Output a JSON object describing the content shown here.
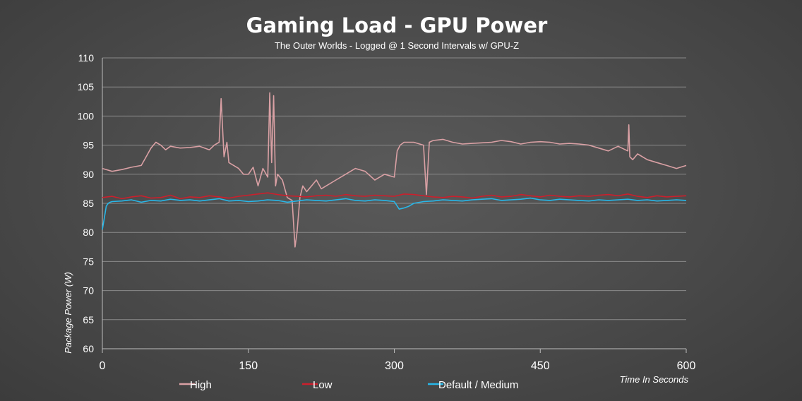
{
  "chart_data": {
    "type": "line",
    "title": "Gaming Load - GPU Power",
    "subtitle": "The Outer Worlds - Logged @ 1 Second Intervals w/ GPU-Z",
    "xlabel": "Time In Seconds",
    "ylabel": "Package Power (W)",
    "xlim": [
      0,
      600
    ],
    "ylim": [
      60,
      110
    ],
    "xticks": [
      0,
      150,
      300,
      450,
      600
    ],
    "yticks": [
      60,
      65,
      70,
      75,
      80,
      85,
      90,
      95,
      100,
      105,
      110
    ],
    "grid": "horizontal",
    "legend_position": "bottom",
    "series": [
      {
        "name": "High",
        "color": "#d9a0a4",
        "x": [
          0,
          10,
          20,
          30,
          40,
          45,
          50,
          55,
          60,
          65,
          70,
          80,
          90,
          100,
          110,
          115,
          120,
          122,
          125,
          128,
          130,
          135,
          140,
          145,
          150,
          155,
          160,
          165,
          170,
          172,
          174,
          176,
          178,
          180,
          185,
          190,
          195,
          198,
          200,
          203,
          206,
          210,
          215,
          220,
          225,
          230,
          240,
          250,
          260,
          270,
          280,
          290,
          300,
          303,
          306,
          310,
          320,
          330,
          333,
          336,
          340,
          350,
          360,
          370,
          380,
          390,
          400,
          410,
          420,
          430,
          440,
          450,
          460,
          470,
          480,
          490,
          500,
          510,
          520,
          530,
          540,
          541,
          542,
          545,
          550,
          560,
          570,
          580,
          590,
          600
        ],
        "values": [
          91,
          90.5,
          90.8,
          91.2,
          91.5,
          93,
          94.5,
          95.5,
          95,
          94.2,
          94.8,
          94.5,
          94.6,
          94.8,
          94.2,
          95,
          95.5,
          103,
          93,
          95.5,
          92,
          91.5,
          91,
          90,
          90,
          91.2,
          88,
          91,
          89.5,
          104,
          92,
          103.5,
          88,
          90,
          89,
          86,
          85.5,
          77.5,
          80,
          86,
          88,
          87,
          88,
          89,
          87.5,
          88,
          89,
          90,
          91,
          90.5,
          89,
          90,
          89.5,
          94,
          95,
          95.5,
          95.5,
          95,
          86.5,
          95.5,
          95.8,
          96,
          95.5,
          95.2,
          95.3,
          95.4,
          95.5,
          95.8,
          95.6,
          95.2,
          95.5,
          95.6,
          95.5,
          95.2,
          95.3,
          95.2,
          95.0,
          94.5,
          94.0,
          94.8,
          94,
          98.5,
          93,
          92.5,
          93.5,
          92.5,
          92,
          91.5,
          91,
          91.5
        ]
      },
      {
        "name": "Low",
        "color": "#cc1f2c",
        "x": [
          0,
          10,
          20,
          30,
          40,
          50,
          60,
          70,
          80,
          90,
          100,
          110,
          120,
          130,
          140,
          150,
          160,
          170,
          180,
          190,
          200,
          210,
          220,
          230,
          240,
          250,
          260,
          270,
          280,
          290,
          300,
          310,
          320,
          330,
          340,
          350,
          360,
          370,
          380,
          390,
          400,
          410,
          420,
          430,
          440,
          450,
          460,
          470,
          480,
          490,
          500,
          510,
          520,
          530,
          540,
          550,
          560,
          570,
          580,
          590,
          600
        ],
        "values": [
          86,
          86.2,
          85.8,
          86.1,
          86.3,
          85.9,
          86,
          86.4,
          85.8,
          86.1,
          86,
          86.3,
          86.1,
          85.9,
          86.2,
          86.4,
          86.6,
          86.8,
          86.5,
          86.3,
          86.2,
          86.1,
          86.3,
          86.4,
          86.2,
          86.5,
          86.3,
          86.2,
          86.4,
          86.3,
          86.2,
          86.6,
          86.5,
          86.3,
          86.1,
          86,
          86.2,
          86.1,
          85.9,
          86.2,
          86.4,
          86.1,
          86.2,
          86.5,
          86.3,
          86.1,
          86.4,
          86.2,
          86.1,
          86.3,
          86.2,
          86.4,
          86.5,
          86.3,
          86.6,
          86.2,
          86,
          86.3,
          86.1,
          86.2,
          86.3
        ]
      },
      {
        "name": "Default / Medium",
        "color": "#28b7e8",
        "x": [
          0,
          2,
          4,
          6,
          8,
          10,
          20,
          30,
          40,
          50,
          60,
          70,
          80,
          90,
          100,
          110,
          120,
          130,
          140,
          150,
          160,
          170,
          180,
          190,
          200,
          210,
          220,
          230,
          240,
          250,
          260,
          270,
          280,
          290,
          300,
          305,
          310,
          315,
          320,
          330,
          340,
          350,
          360,
          370,
          380,
          390,
          400,
          410,
          420,
          430,
          440,
          450,
          460,
          470,
          480,
          490,
          500,
          510,
          520,
          530,
          540,
          550,
          560,
          570,
          580,
          590,
          600
        ],
        "values": [
          80.5,
          82.5,
          84.5,
          85,
          85.2,
          85.3,
          85.4,
          85.6,
          85.2,
          85.5,
          85.4,
          85.7,
          85.5,
          85.6,
          85.4,
          85.6,
          85.8,
          85.4,
          85.5,
          85.3,
          85.4,
          85.6,
          85.5,
          85.2,
          85.4,
          85.6,
          85.5,
          85.4,
          85.6,
          85.8,
          85.5,
          85.4,
          85.6,
          85.5,
          85.3,
          84,
          84.2,
          84.5,
          85,
          85.3,
          85.4,
          85.6,
          85.5,
          85.4,
          85.6,
          85.7,
          85.8,
          85.5,
          85.6,
          85.7,
          85.9,
          85.6,
          85.5,
          85.7,
          85.6,
          85.5,
          85.4,
          85.6,
          85.5,
          85.6,
          85.7,
          85.5,
          85.6,
          85.4,
          85.5,
          85.6,
          85.5
        ]
      }
    ]
  }
}
